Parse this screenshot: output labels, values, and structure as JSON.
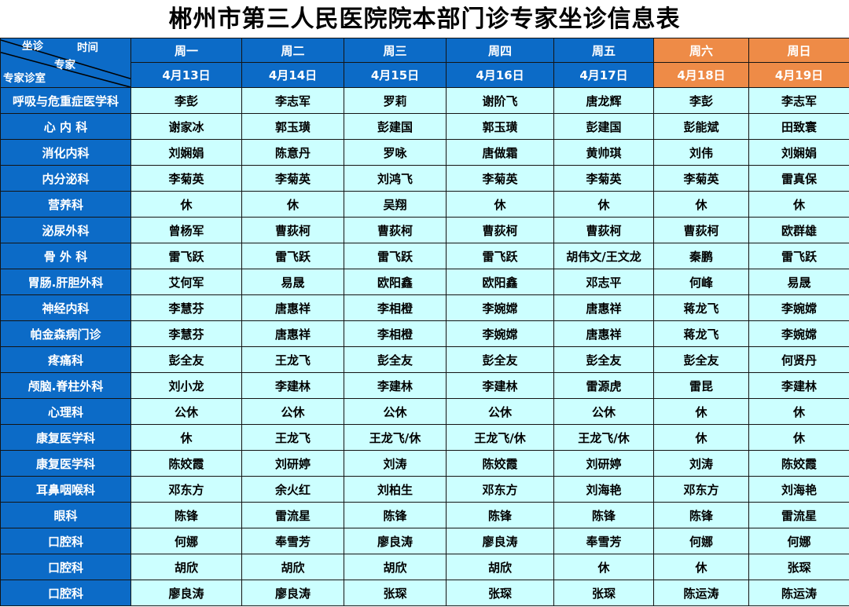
{
  "title": "郴州市第三人民医院院本部门诊专家坐诊信息表",
  "corner": {
    "top_left": "坐诊",
    "top_right": "时间",
    "middle": "专家",
    "bottom_left": "专家诊室"
  },
  "columns": [
    {
      "day": "周一",
      "date": "4月13日",
      "weekend": false
    },
    {
      "day": "周二",
      "date": "4月14日",
      "weekend": false
    },
    {
      "day": "周三",
      "date": "4月15日",
      "weekend": false
    },
    {
      "day": "周四",
      "date": "4月16日",
      "weekend": false
    },
    {
      "day": "周五",
      "date": "4月17日",
      "weekend": false
    },
    {
      "day": "周六",
      "date": "4月18日",
      "weekend": true
    },
    {
      "day": "周日",
      "date": "4月19日",
      "weekend": true
    }
  ],
  "rows": [
    {
      "dept": "呼吸与危重症医学科",
      "cells": [
        "李彭",
        "李志军",
        "罗莉",
        "谢阶飞",
        "唐龙辉",
        "李彭",
        "李志军"
      ]
    },
    {
      "dept": "心 内 科",
      "cells": [
        "谢家冰",
        "郭玉璜",
        "彭建国",
        "郭玉璜",
        "彭建国",
        "彭能斌",
        "田致寰"
      ]
    },
    {
      "dept": "消化内科",
      "cells": [
        "刘娴娟",
        "陈意丹",
        "罗咏",
        "唐做霜",
        "黄帅琪",
        "刘伟",
        "刘娴娟"
      ]
    },
    {
      "dept": "内分泌科",
      "cells": [
        "李菊英",
        "李菊英",
        "刘鸿飞",
        "李菊英",
        "李菊英",
        "李菊英",
        "雷真保"
      ]
    },
    {
      "dept": "营养科",
      "cells": [
        "休",
        "休",
        "吴翔",
        "休",
        "休",
        "休",
        "休"
      ]
    },
    {
      "dept": "泌尿外科",
      "cells": [
        "曾杨军",
        "曹荻柯",
        "曹荻柯",
        "曹荻柯",
        "曹荻柯",
        "曹荻柯",
        "欧群雄"
      ]
    },
    {
      "dept": "骨 外 科",
      "cells": [
        "雷飞跃",
        "雷飞跃",
        "雷飞跃",
        "雷飞跃",
        "胡伟文/王文龙",
        "秦鹏",
        "雷飞跃"
      ]
    },
    {
      "dept": "胃肠.肝胆外科",
      "cells": [
        "艾何军",
        "易晟",
        "欧阳鑫",
        "欧阳鑫",
        "邓志平",
        "何峰",
        "易晟"
      ]
    },
    {
      "dept": "神经内科",
      "cells": [
        "李慧芬",
        "唐惠祥",
        "李相橙",
        "李婉嫦",
        "唐惠祥",
        "蒋龙飞",
        "李婉嫦"
      ]
    },
    {
      "dept": "帕金森病门诊",
      "cells": [
        "李慧芬",
        "唐惠祥",
        "李相橙",
        "李婉嫦",
        "唐惠祥",
        "蒋龙飞",
        "李婉嫦"
      ]
    },
    {
      "dept": "疼痛科",
      "cells": [
        "彭全友",
        "王龙飞",
        "彭全友",
        "彭全友",
        "彭全友",
        "彭全友",
        "何贤丹"
      ]
    },
    {
      "dept": "颅脑.脊柱外科",
      "cells": [
        "刘小龙",
        "李建林",
        "李建林",
        "李建林",
        "雷源虎",
        "雷昆",
        "李建林"
      ]
    },
    {
      "dept": "心理科",
      "cells": [
        "公休",
        "公休",
        "公休",
        "公休",
        "公休",
        "休",
        "休"
      ]
    },
    {
      "dept": "康复医学科",
      "cells": [
        "休",
        "王龙飞",
        "王龙飞/休",
        "王龙飞/休",
        "王龙飞/休",
        "休",
        "休"
      ]
    },
    {
      "dept": "康复医学科",
      "cells": [
        "陈姣霞",
        "刘研婷",
        "刘涛",
        "陈姣霞",
        "刘研婷",
        "刘涛",
        "陈姣霞"
      ]
    },
    {
      "dept": "耳鼻咽喉科",
      "cells": [
        "邓东方",
        "余火红",
        "刘柏生",
        "邓东方",
        "刘海艳",
        "邓东方",
        "刘海艳"
      ]
    },
    {
      "dept": "眼科",
      "cells": [
        "陈锋",
        "雷流星",
        "陈锋",
        "陈锋",
        "陈锋",
        "陈锋",
        "雷流星"
      ]
    },
    {
      "dept": "口腔科",
      "cells": [
        "何娜",
        "奉雪芳",
        "廖良涛",
        "廖良涛",
        "奉雪芳",
        "何娜",
        "何娜"
      ]
    },
    {
      "dept": "口腔科",
      "cells": [
        "胡欣",
        "胡欣",
        "胡欣",
        "胡欣",
        "休",
        "休",
        "张琛"
      ]
    },
    {
      "dept": "口腔科",
      "cells": [
        "廖良涛",
        "廖良涛",
        "张琛",
        "张琛",
        "张琛",
        "陈运涛",
        "陈运涛"
      ]
    }
  ],
  "colors": {
    "header_blue": "#0c6bc7",
    "weekend_orange": "#ee8b47",
    "cell_cyan": "#ccffff",
    "grid_line": "#141414",
    "header_text": "#ffffff",
    "cell_text": "#000000"
  }
}
